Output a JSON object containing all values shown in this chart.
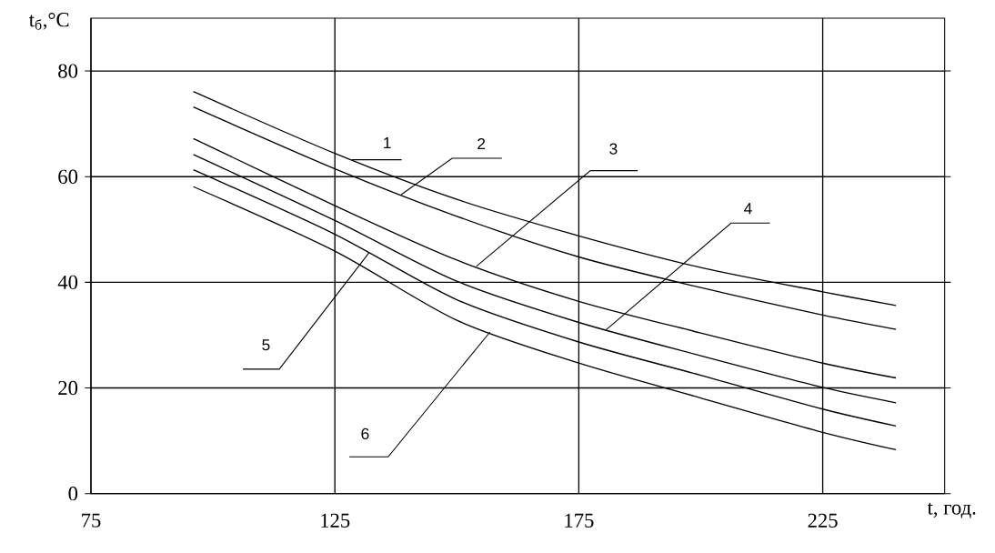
{
  "chart_data": {
    "type": "line",
    "xlabel": "t, год.",
    "ylabel": "t$_{б}$,°C",
    "x": [
      96,
      125,
      150,
      175,
      200,
      225,
      240
    ],
    "series": [
      {
        "color": "#000000",
        "values": [
          76.1,
          64.4,
          55.7,
          48.8,
          42.8,
          38.2,
          35.6
        ]
      },
      {
        "color": "#000000",
        "values": [
          73.2,
          61.5,
          52.5,
          44.8,
          39.0,
          33.8,
          31.1
        ]
      },
      {
        "color": "#000000",
        "values": [
          67.2,
          54.5,
          44.2,
          36.4,
          30.4,
          24.7,
          21.9
        ]
      },
      {
        "color": "#000000",
        "values": [
          64.2,
          51.7,
          40.2,
          32.4,
          26.1,
          20.1,
          17.2
        ]
      },
      {
        "color": "#000000",
        "values": [
          61.3,
          49.1,
          36.7,
          28.7,
          22.4,
          16.0,
          12.8
        ]
      },
      {
        "color": "#000000",
        "values": [
          58.1,
          45.9,
          32.8,
          24.7,
          18.1,
          11.6,
          8.3
        ]
      }
    ],
    "annotations": [
      {
        "text": "1",
        "x": 128.5,
        "y": 63.2
      },
      {
        "text": "2",
        "x": 138.6,
        "y": 56.6
      },
      {
        "text": "3",
        "x": 154,
        "y": 43
      },
      {
        "text": "4",
        "x": 180.6,
        "y": 31
      },
      {
        "text": "5",
        "x": 132,
        "y": 45.6
      },
      {
        "text": "6",
        "x": 156.8,
        "y": 30.6
      }
    ],
    "xlim": [
      75,
      250
    ],
    "ylim": [
      0,
      90
    ],
    "xticks": [
      75,
      125,
      175,
      225
    ],
    "yticks": [
      0,
      20,
      40,
      60,
      80
    ],
    "grid": true
  }
}
